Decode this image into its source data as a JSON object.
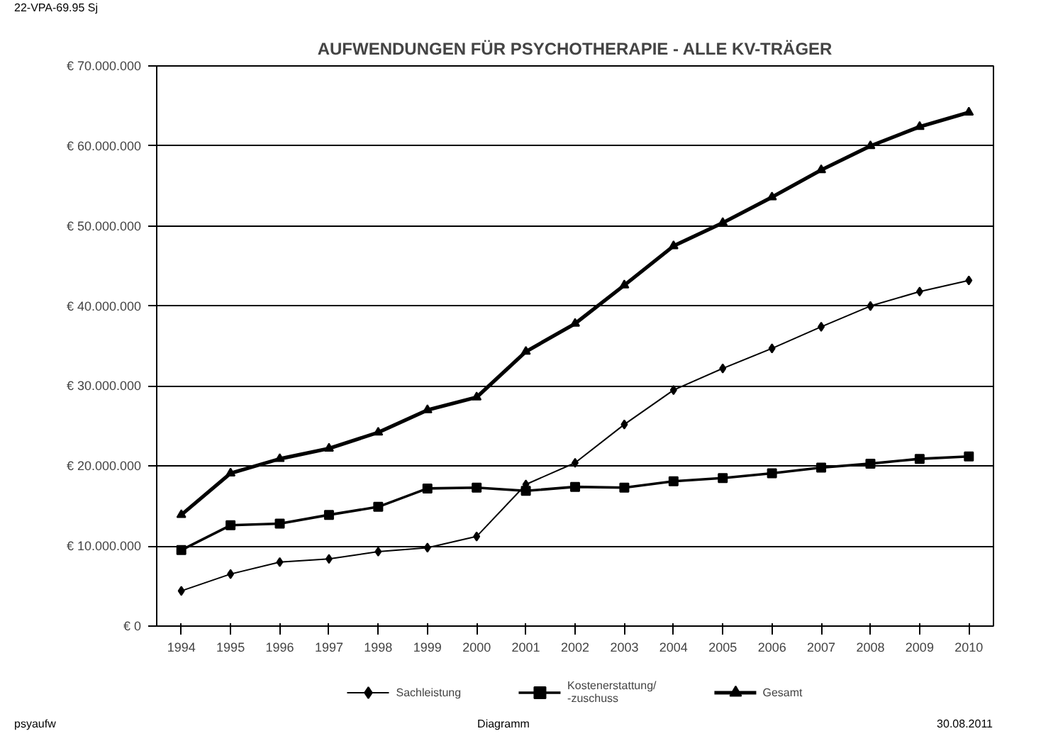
{
  "chart_data": {
    "type": "line",
    "title": "AUFWENDUNGEN FÜR PSYCHOTHERAPIE - ALLE KV-TRÄGER",
    "categories": [
      "1994",
      "1995",
      "1996",
      "1997",
      "1998",
      "1999",
      "2000",
      "2001",
      "2002",
      "2003",
      "2004",
      "2005",
      "2006",
      "2007",
      "2008",
      "2009",
      "2010"
    ],
    "series": [
      {
        "name": "Sachleistung",
        "color": "#000000",
        "marker": "diamond",
        "values": [
          4400000,
          6500000,
          8000000,
          8400000,
          9300000,
          9800000,
          11200000,
          17700000,
          20400000,
          25200000,
          29500000,
          32200000,
          34700000,
          37400000,
          40000000,
          41800000,
          43200000
        ]
      },
      {
        "name": "Kostenerstattung/\n-zuschuss",
        "color": "#000000",
        "marker": "square",
        "values": [
          9500000,
          12600000,
          12800000,
          13900000,
          14900000,
          17200000,
          17300000,
          16900000,
          17400000,
          17300000,
          18100000,
          18500000,
          19100000,
          19800000,
          20300000,
          20900000,
          21200000
        ]
      },
      {
        "name": "Gesamt",
        "color": "#000000",
        "marker": "triangle",
        "values": [
          13900000,
          19100000,
          20900000,
          22200000,
          24200000,
          27000000,
          28600000,
          34300000,
          37800000,
          42600000,
          47500000,
          50400000,
          53600000,
          57000000,
          60000000,
          62400000,
          64200000
        ]
      }
    ],
    "ylim": [
      0,
      70000000
    ],
    "yticks": [
      {
        "value": 0,
        "label": "€ 0"
      },
      {
        "value": 10000000,
        "label": "€ 10.000.000"
      },
      {
        "value": 20000000,
        "label": "€ 20.000.000"
      },
      {
        "value": 30000000,
        "label": "€ 30.000.000"
      },
      {
        "value": 40000000,
        "label": "€ 40.000.000"
      },
      {
        "value": 50000000,
        "label": "€ 50.000.000"
      },
      {
        "value": 60000000,
        "label": "€ 60.000.000"
      },
      {
        "value": 70000000,
        "label": "€ 70.000.000"
      }
    ],
    "grid": "y",
    "legend": "bottom",
    "line_style": "solid",
    "annotations": [
      "22-VPA-69.95 Sj",
      "psyaufw",
      "Diagramm",
      "30.08.2011"
    ]
  }
}
